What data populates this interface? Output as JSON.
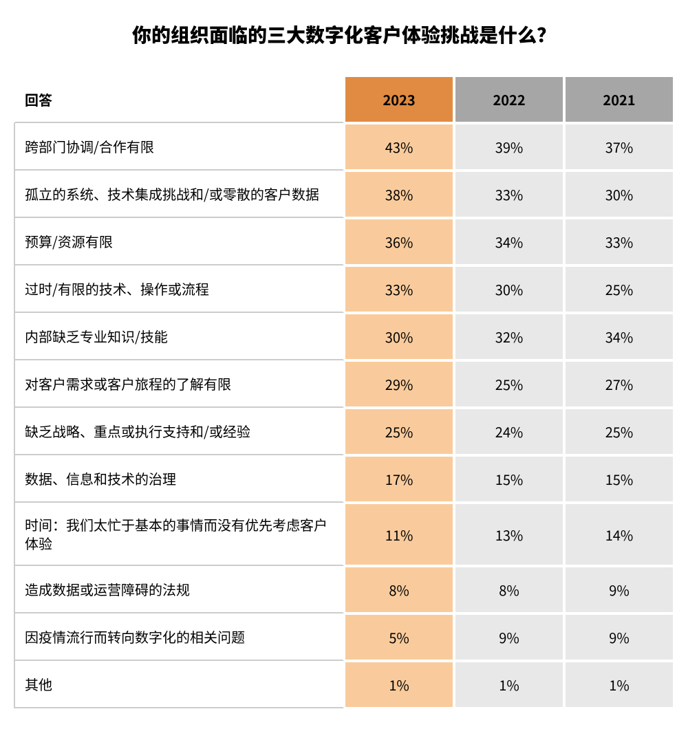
{
  "title": "你的组织面临的三大数字化客户体验挑战是什么？",
  "table": {
    "header_label": "回答",
    "years": [
      "2023",
      "2022",
      "2021"
    ],
    "header_bg_colors": [
      "#e08b41",
      "#a6a6a6",
      "#a6a6a6"
    ],
    "column_bg_colors": [
      "#f9cb9c",
      "#e8e8e8",
      "#e8e8e8"
    ],
    "label_col_width_pct": 50,
    "year_col_width_pct": 16.66,
    "row_labels": [
      "跨部门协调/合作有限",
      "孤立的系统、技术集成挑战和/或零散的客户数据",
      "预算/资源有限",
      "过时/有限的技术、操作或流程",
      "内部缺乏专业知识/技能",
      "对客户需求或客户旅程的了解有限",
      "缺乏战略、重点或执行支持和/或经验",
      "数据、信息和技术的治理",
      "时间：我们太忙于基本的事情而没有优先考虑客户体验",
      "造成数据或运营障碍的法规",
      "因疫情流行而转向数字化的相关问题",
      "其他"
    ],
    "values": [
      [
        "43%",
        "39%",
        "37%"
      ],
      [
        "38%",
        "33%",
        "30%"
      ],
      [
        "36%",
        "34%",
        "33%"
      ],
      [
        "33%",
        "30%",
        "25%"
      ],
      [
        "30%",
        "32%",
        "34%"
      ],
      [
        "29%",
        "25%",
        "27%"
      ],
      [
        "25%",
        "24%",
        "25%"
      ],
      [
        "17%",
        "15%",
        "15%"
      ],
      [
        "11%",
        "13%",
        "14%"
      ],
      [
        "8%",
        "8%",
        "9%"
      ],
      [
        "5%",
        "9%",
        "9%"
      ],
      [
        "1%",
        "1%",
        "1%"
      ]
    ],
    "border_color": "#ffffff",
    "label_border_color": "#cccccc",
    "title_fontsize": 28,
    "cell_fontsize": 20
  }
}
